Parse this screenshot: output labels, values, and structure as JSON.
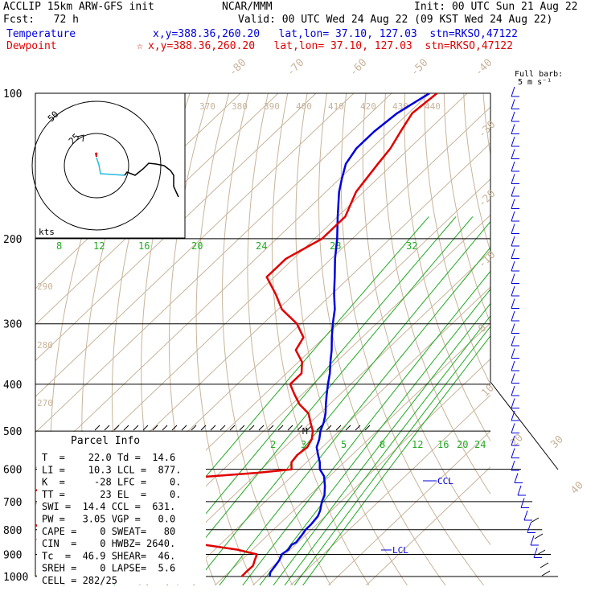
{
  "header": {
    "model": "ACCLIP 15km ARW-GFS init",
    "forecast": "Fcst:   72 h",
    "org": "NCAR/MMM",
    "init": "Init: 00 UTC Sun 21 Aug 22",
    "valid": "Valid: 00 UTC Wed 24 Aug 22 (09 KST Wed 24 Aug 22)",
    "temp_label": "Temperature",
    "temp_loc": "x,y=388.36,260.20   lat,lon= 37.10, 127.03  stn=RKSO,47122",
    "dew_label": "Dewpoint",
    "dew_star": "☆",
    "dew_loc": "x,y=388.36,260.20   lat,lon= 37.10, 127.03  stn=RKSO,47122"
  },
  "colors": {
    "temperature": "#0000dd",
    "dewpoint": "#e00000",
    "isotherm": "#c8b49a",
    "mixing_ratio": "#22aa22",
    "isobar": "#000000"
  },
  "chart_data": {
    "type": "line",
    "subtype": "skew-T log-P",
    "y_label_values": [
      100,
      200,
      300,
      400,
      500,
      600,
      700,
      800,
      900,
      1000
    ],
    "y_scale": "log",
    "isotherm_labels": [
      "-80",
      "-70",
      "-60",
      "-50",
      "-40",
      "-30",
      "-20",
      "-10",
      "0",
      "10",
      "20",
      "30",
      "40"
    ],
    "theta_labels_top": [
      "370",
      "380",
      "390",
      "400",
      "410",
      "420",
      "430",
      "440"
    ],
    "theta_labels_left": [
      "290",
      "280",
      "270"
    ],
    "mixing_ratio_labels_200": [
      "8",
      "12",
      "16",
      "20",
      "24",
      "28",
      "32"
    ],
    "mixing_ratio_labels_550": [
      "2",
      "3",
      "5",
      "8",
      "12",
      "16",
      "20",
      "24"
    ],
    "series": [
      {
        "name": "Temperature",
        "p": [
          1000,
          980,
          950,
          925,
          900,
          880,
          860,
          850,
          820,
          800,
          780,
          750,
          730,
          700,
          680,
          650,
          620,
          600,
          580,
          560,
          540,
          520,
          500,
          480,
          460,
          440,
          420,
          400,
          380,
          360,
          340,
          320,
          300,
          280,
          260,
          240,
          220,
          200,
          180,
          160,
          150,
          140,
          130,
          120,
          110,
          100
        ],
        "t": [
          22,
          21,
          20.5,
          20,
          19,
          19.5,
          19,
          19.5,
          19,
          18.5,
          18.5,
          18,
          17,
          15,
          14,
          11.5,
          8.5,
          5.5,
          3.5,
          1,
          -1.5,
          -3,
          -5,
          -6.5,
          -8.5,
          -11,
          -13.5,
          -16,
          -18.5,
          -21.5,
          -24.5,
          -28,
          -31.5,
          -35,
          -39.5,
          -44,
          -49,
          -54,
          -60,
          -66.5,
          -69.5,
          -72.5,
          -74,
          -74,
          -73,
          -70
        ]
      },
      {
        "name": "Dewpoint",
        "p": [
          1000,
          980,
          950,
          925,
          900,
          880,
          860,
          850,
          830,
          810,
          790,
          770,
          750,
          730,
          710,
          700,
          690,
          680,
          670,
          650,
          630,
          620,
          610,
          600,
          580,
          560,
          540,
          520,
          500,
          480,
          460,
          440,
          420,
          400,
          380,
          360,
          340,
          320,
          300,
          280,
          260,
          240,
          220,
          200,
          180,
          160,
          140,
          130,
          120,
          110,
          100
        ],
        "t": [
          14.6,
          14.5,
          14.6,
          13.5,
          12.5,
          6,
          -4,
          -11,
          -25,
          -38,
          -50,
          -63,
          -75,
          -84,
          -89,
          -91,
          -87,
          -79,
          -70,
          -52,
          -32,
          -21,
          -10,
          -2,
          -4,
          -4.5,
          -4,
          -5,
          -7,
          -10,
          -13,
          -18,
          -22,
          -26,
          -26,
          -29,
          -34,
          -35.5,
          -41,
          -49,
          -55,
          -62,
          -62,
          -58,
          -58,
          -62,
          -64,
          -65,
          -67,
          -69,
          -68
        ]
      }
    ],
    "hodograph": {
      "rings_kts": [
        25,
        50
      ],
      "ring_labels": [
        "25",
        "50"
      ],
      "units_label": "kts"
    },
    "wind_barbs_label": "Full barb:\n5 m s⁻¹",
    "annotations": {
      "ccl_label": "CCL",
      "lcl_label": "LCL",
      "m_marker": "M"
    }
  },
  "parcel": {
    "title": "Parcel Info",
    "lines": [
      "T  =    22.0 Td =  14.6",
      "LI =    10.3 LCL =  877.",
      "K  =     -28 LFC =    0.",
      "TT =      23 EL  =    0.",
      "SWI =  14.4 CCL =  631.",
      "PW =   3.05 VGP =   0.0",
      "CAPE =    0 SWEAT=   80",
      "CIN  =    0 HWBZ= 2640.",
      "Tc  =  46.9 SHEAR=  46.",
      "SREH =    0 LAPSE=  5.6",
      "CELL = 282/25"
    ]
  }
}
